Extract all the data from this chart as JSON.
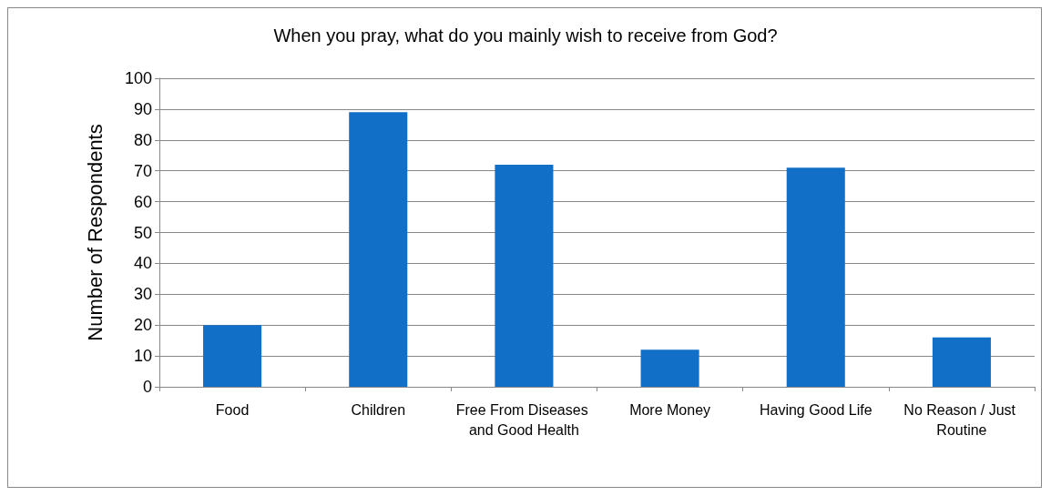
{
  "chart_data": {
    "type": "bar",
    "title": "When you pray, what do you mainly wish to receive from God?",
    "ylabel": "Number of Respondents",
    "categories": [
      "Food",
      "Children",
      "Free From Diseases and Good Health",
      "More Money",
      "Having Good Life",
      "No Reason / Just Routine"
    ],
    "values": [
      20,
      89,
      72,
      12,
      71,
      16
    ],
    "color": "#116fc7",
    "ylim": [
      0,
      100
    ],
    "yticks": [
      0,
      10,
      20,
      30,
      40,
      50,
      60,
      70,
      80,
      90,
      100
    ],
    "grid": "y"
  }
}
